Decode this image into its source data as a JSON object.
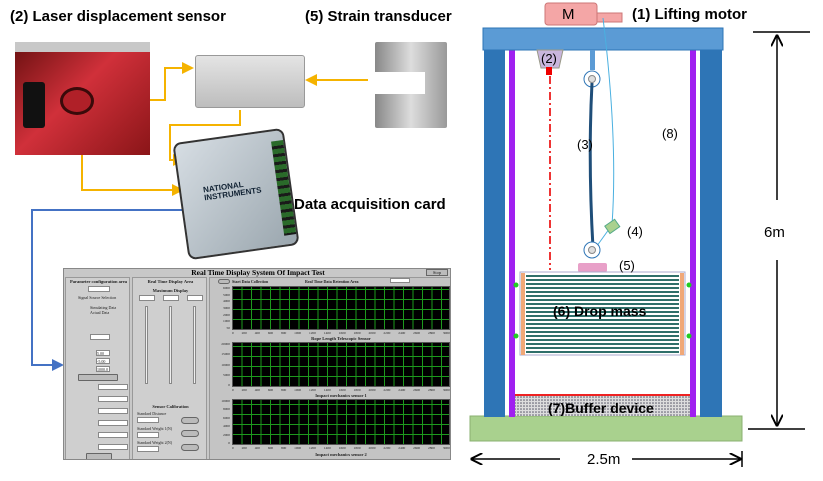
{
  "labels": {
    "laser": "(2)  Laser displacement sensor",
    "strain": "(5)  Strain transducer",
    "daq": "Data acquisition card",
    "ni_brand": "NATIONAL INSTRUMENTS"
  },
  "software": {
    "title": "Real Time Display System Of Impact Test",
    "stop": "Stop",
    "param_area": "Parameter configuration area",
    "signal_source": "Signal Source Selection",
    "analog": "Simulating Data",
    "actual": "Actual Data",
    "display_area": "Real Time Display Area",
    "max_display": "Maximum Display",
    "start": "Start Data Collection",
    "retention": "Real Time Data Retention Area",
    "upper_voltage": "5.00",
    "lower_voltage": "-5.00",
    "sampling": "1000.0",
    "calibration": "Sensor Calibration",
    "std_distance": "Standard Distance",
    "std_weight1": "Standard Weight 1(N)",
    "std_weight2": "Standard Weight 2(N)",
    "plot1_y": [
      "6000",
      "5000",
      "4000",
      "3000",
      "2000",
      "1000",
      "50"
    ],
    "plot2_title": "Rope Length Telescopic Sensor",
    "plot2_y": [
      "20000",
      "15000",
      "10000",
      "5000",
      "0"
    ],
    "plot3_title": "Impact mechanics sensor 1",
    "plot3_y": [
      "10000",
      "8000",
      "6000",
      "4000",
      "2000",
      "0"
    ],
    "plot4_title": "Impact mechanics sensor 2",
    "x_ticks": [
      "0",
      "200",
      "400",
      "600",
      "800",
      "1000",
      "1200",
      "1400",
      "1600",
      "1800",
      "2000",
      "2200",
      "2400",
      "2600",
      "2800",
      "3000"
    ]
  },
  "rig": {
    "motor": "M",
    "motor_label": "(1)  Lifting motor",
    "n2": "(2)",
    "n3": "(3)",
    "n4": "(4)",
    "n5": "(5)",
    "n8": "(8)",
    "drop_mass": "(6)  Drop mass",
    "buffer": "(7)Buffer device",
    "height": "6m",
    "width": "2.5m"
  },
  "colors": {
    "frame": "#2e75b6",
    "rail": "#a020f0",
    "ground": "#a9d18e",
    "motor": "#f4a6a6",
    "arrow_orange": "#f5b300",
    "arrow_blue": "#4472c4"
  }
}
